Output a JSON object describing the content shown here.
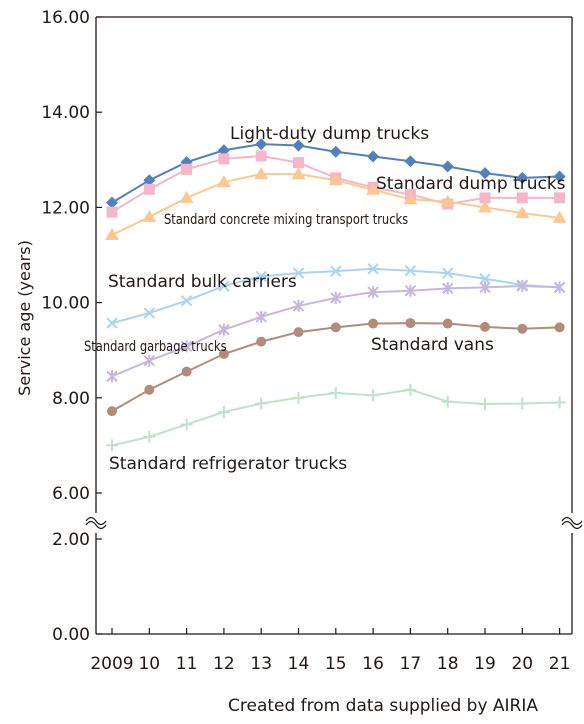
{
  "source_note": "Created from data supplied by AIRIA",
  "chart_data": {
    "type": "line",
    "ylabel": "Service age (years)",
    "xlabel": "",
    "x": [
      "2009",
      "10",
      "11",
      "12",
      "13",
      "14",
      "15",
      "16",
      "17",
      "18",
      "19",
      "20",
      "21"
    ],
    "y_ticks": [
      "0.00",
      "2.00",
      "6.00",
      "8.00",
      "10.00",
      "12.00",
      "14.00",
      "16.00"
    ],
    "y_axis_break": "between 2.00 and 6.00",
    "grid": false,
    "series": [
      {
        "name": "Light-duty dump trucks",
        "color": "#4f81bd",
        "marker": "diamond",
        "values": [
          12.1,
          12.57,
          12.95,
          13.2,
          13.33,
          13.3,
          13.17,
          13.07,
          12.97,
          12.86,
          12.72,
          12.62,
          12.65
        ]
      },
      {
        "name": "Standard dump trucks",
        "color": "#f4b6c8",
        "marker": "square",
        "values": [
          11.9,
          12.38,
          12.8,
          13.02,
          13.08,
          12.94,
          12.62,
          12.42,
          12.27,
          12.07,
          12.2,
          12.2,
          12.2
        ]
      },
      {
        "name": "Standard concrete mixing transport trucks",
        "color": "#fbc98f",
        "marker": "triangle",
        "values": [
          11.42,
          11.8,
          12.2,
          12.53,
          12.7,
          12.7,
          12.57,
          12.37,
          12.17,
          12.12,
          12.0,
          11.88,
          11.78
        ]
      },
      {
        "name": "Standard bulk carriers",
        "color": "#a9d4ed",
        "marker": "x",
        "values": [
          9.57,
          9.78,
          10.04,
          10.35,
          10.55,
          10.62,
          10.66,
          10.71,
          10.67,
          10.62,
          10.5,
          10.37,
          10.32
        ]
      },
      {
        "name": "Standard garbage trucks",
        "color": "#c8b7dc",
        "marker": "star",
        "values": [
          8.45,
          8.78,
          9.08,
          9.43,
          9.7,
          9.93,
          10.1,
          10.22,
          10.25,
          10.3,
          10.32,
          10.35,
          10.32
        ]
      },
      {
        "name": "Standard vans",
        "color": "#b28c79",
        "marker": "circle",
        "values": [
          7.72,
          8.17,
          8.55,
          8.92,
          9.18,
          9.38,
          9.48,
          9.56,
          9.57,
          9.56,
          9.49,
          9.45,
          9.48
        ]
      },
      {
        "name": "Standard refrigerator trucks",
        "color": "#bfe2c8",
        "marker": "plus",
        "values": [
          7.0,
          7.18,
          7.44,
          7.7,
          7.88,
          8.0,
          8.1,
          8.05,
          8.17,
          7.92,
          7.87,
          7.88,
          7.9
        ]
      }
    ]
  }
}
